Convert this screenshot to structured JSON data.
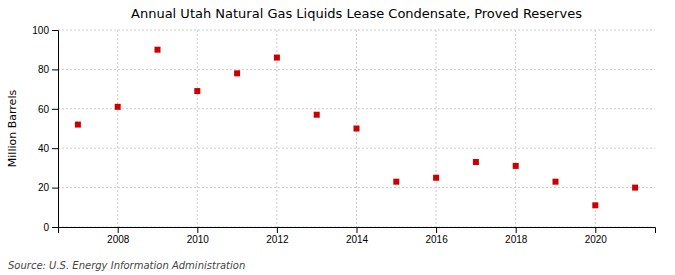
{
  "chart_data": {
    "type": "scatter",
    "title": "Annual Utah Natural Gas Liquids Lease Condensate, Proved Reserves",
    "ylabel": "Million Barrels",
    "source": "Source: U.S. Energy Information Administration",
    "x": [
      2007,
      2008,
      2009,
      2010,
      2011,
      2012,
      2013,
      2014,
      2015,
      2016,
      2017,
      2018,
      2019,
      2020,
      2021
    ],
    "values": [
      52,
      61,
      90,
      69,
      78,
      86,
      57,
      50,
      23,
      25,
      33,
      31,
      23,
      11,
      20
    ],
    "color": "#cc0000",
    "marker": "square",
    "xlim": [
      2006.5,
      2021.5
    ],
    "ylim": [
      0,
      100
    ],
    "xticks": [
      2008,
      2010,
      2012,
      2014,
      2016,
      2018,
      2020
    ],
    "yticks": [
      0,
      20,
      40,
      60,
      80,
      100
    ],
    "grid": true
  }
}
